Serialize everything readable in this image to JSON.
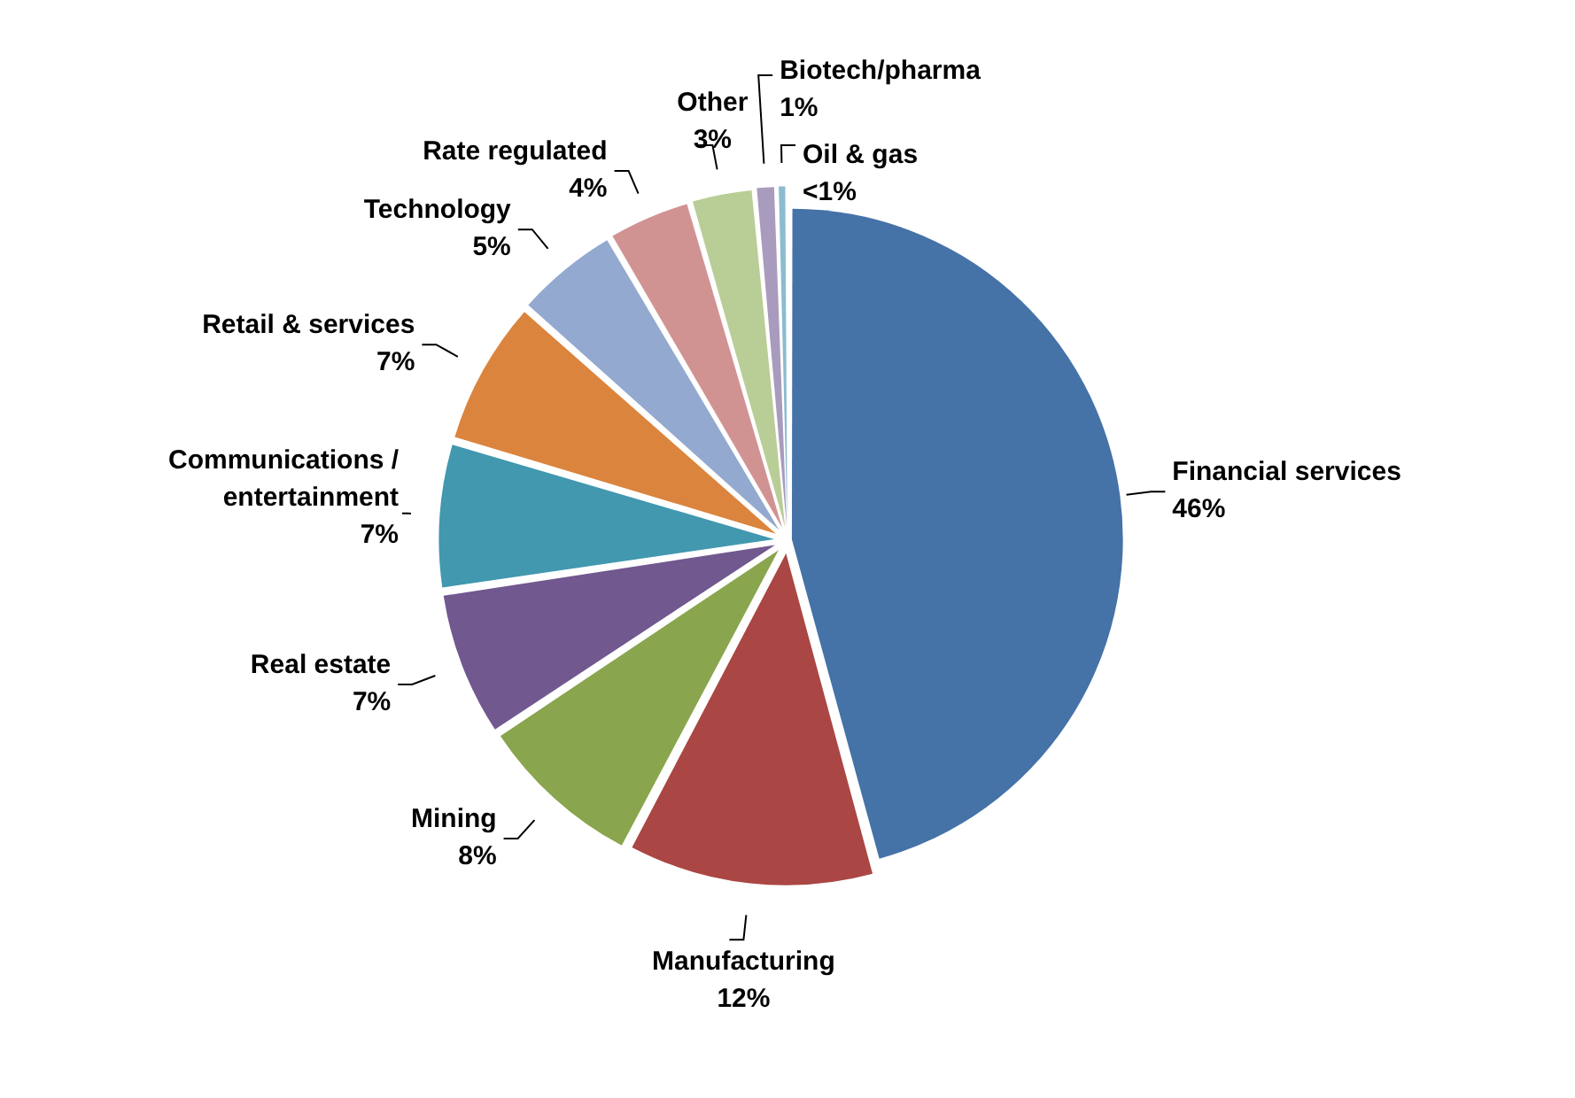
{
  "chart_data": {
    "type": "pie",
    "categories": [
      "Financial services",
      "Manufacturing",
      "Mining",
      "Real estate",
      "Communications / entertainment",
      "Retail & services",
      "Technology",
      "Rate regulated",
      "Other",
      "Biotech/pharma",
      "Oil & gas"
    ],
    "values": [
      46,
      12,
      8,
      7,
      7,
      7,
      5,
      4,
      3,
      1,
      0.5
    ],
    "value_labels": [
      "46%",
      "12%",
      "8%",
      "7%",
      "7%",
      "7%",
      "5%",
      "4%",
      "3%",
      "1%",
      "<1%"
    ],
    "colors": [
      "#4572a7",
      "#aa4643",
      "#89a54e",
      "#71588f",
      "#4198af",
      "#db843d",
      "#93a9cf",
      "#d19392",
      "#b9cd96",
      "#a99bbd",
      "#8bbccf"
    ],
    "legend": false
  }
}
